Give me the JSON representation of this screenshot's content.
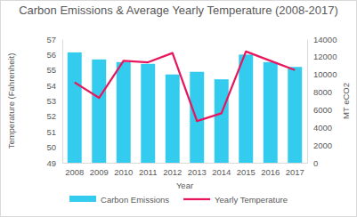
{
  "chart_data": {
    "type": "bar",
    "title": "Carbon Emissions & Average Yearly Temperature (2008-2017)",
    "x_label": "Year",
    "y_label": "Temperature (Fahrenheit)",
    "y2_label": "MT eCO2",
    "categories": [
      "2008",
      "2009",
      "2010",
      "2011",
      "2012",
      "2013",
      "2014",
      "2015",
      "2016",
      "2017"
    ],
    "series": [
      {
        "name": "Carbon Emissions",
        "type": "bar",
        "color": "#33ccee",
        "axis": "y2",
        "values": [
          12500,
          11700,
          11400,
          11200,
          10000,
          10300,
          9450,
          12250,
          11400,
          10850
        ]
      },
      {
        "name": "Yearly Temperature",
        "type": "line",
        "color": "#e8175d",
        "values": [
          54.2,
          53.2,
          55.6,
          55.5,
          56.1,
          51.7,
          52.2,
          56.2,
          55.6,
          55.0
        ]
      }
    ],
    "ylim": [
      49,
      57
    ],
    "yticks": [
      49,
      50,
      51,
      52,
      53,
      54,
      55,
      56,
      57
    ],
    "y2lim": [
      0,
      14000
    ],
    "y2ticks": [
      0,
      2000,
      4000,
      6000,
      8000,
      10000,
      12000,
      14000
    ],
    "grid": false,
    "legend": "bottom"
  }
}
